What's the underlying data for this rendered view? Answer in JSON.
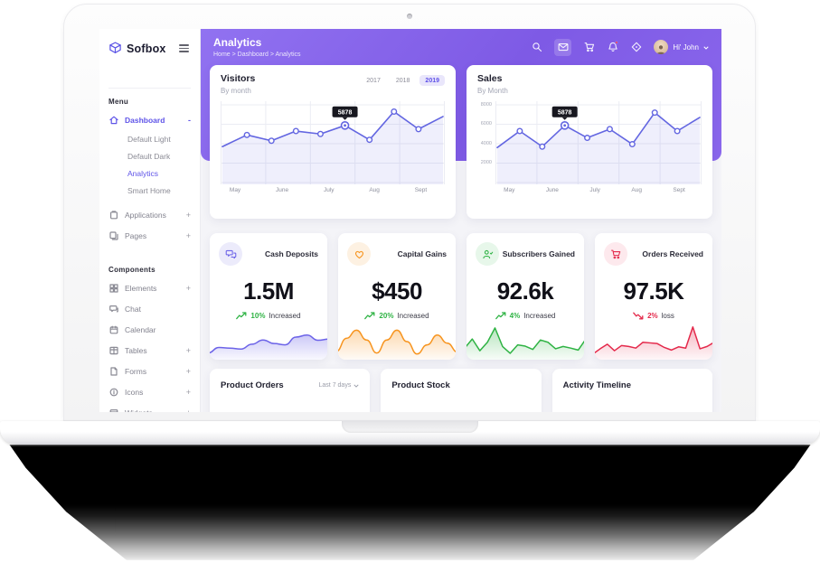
{
  "sidebar": {
    "logo": "Sofbox",
    "menu_label": "Menu",
    "items": [
      {
        "label": "Dashboard",
        "expand": "-"
      },
      {
        "label": "Default Light"
      },
      {
        "label": "Default Dark"
      },
      {
        "label": "Analytics"
      },
      {
        "label": "Smart Home"
      },
      {
        "label": "Applications",
        "expand": "+"
      },
      {
        "label": "Pages",
        "expand": "+"
      }
    ],
    "components_label": "Components",
    "component_items": [
      {
        "label": "Elements",
        "expand": "+"
      },
      {
        "label": "Chat",
        "expand": ""
      },
      {
        "label": "Calendar",
        "expand": ""
      },
      {
        "label": "Tables",
        "expand": "+"
      },
      {
        "label": "Forms",
        "expand": "+"
      },
      {
        "label": "Icons",
        "expand": "+"
      },
      {
        "label": "Widgets",
        "expand": "+"
      }
    ]
  },
  "header": {
    "title": "Analytics",
    "breadcrumb": "Home > Dashboard > Analytics",
    "user_greeting": "Hi' John",
    "icons": [
      "search-icon",
      "mail-icon",
      "cart-icon",
      "bell-icon",
      "gps-icon"
    ]
  },
  "stats": {
    "cards": [
      {
        "title": "Cash Deposits",
        "value": "1.5M",
        "trend_pct": "10%",
        "trend_label": "Increased",
        "direction": "up",
        "icon": "chat-bubbles-icon",
        "color": "#6c63e8",
        "tint": "#ecebfb",
        "trend_color": "#2fb344"
      },
      {
        "title": "Capital Gains",
        "value": "$450",
        "trend_pct": "20%",
        "trend_label": "Increased",
        "direction": "up",
        "icon": "heart-icon",
        "color": "#f7941e",
        "tint": "#fdf1e2",
        "trend_color": "#2fb344"
      },
      {
        "title": "Subscribers Gained",
        "value": "92.6k",
        "trend_pct": "4%",
        "trend_label": "Increased",
        "direction": "up",
        "icon": "user-icon",
        "color": "#2fb344",
        "tint": "#e7f7ea",
        "trend_color": "#2fb344"
      },
      {
        "title": "Orders Received",
        "value": "97.5K",
        "trend_pct": "2%",
        "trend_label": "loss",
        "direction": "down",
        "icon": "cart-icon",
        "color": "#e4294b",
        "tint": "#fde9ed",
        "trend_color": "#e4294b"
      }
    ]
  },
  "bottom_cards": [
    {
      "title": "Product Orders",
      "filter": "Last 7 days"
    },
    {
      "title": "Product Stock",
      "filter": ""
    },
    {
      "title": "Activity Timeline",
      "filter": ""
    }
  ],
  "chart_data": [
    {
      "type": "line",
      "title": "Visitors",
      "subtitle": "By month",
      "tabs": [
        "2017",
        "2018",
        "2019"
      ],
      "active_tab": "2019",
      "x_labels": [
        "May",
        "June",
        "July",
        "Aug",
        "Sept"
      ],
      "values": [
        3700,
        4900,
        4300,
        5300,
        5000,
        5878,
        4400,
        7300,
        5500,
        6800
      ],
      "ylim": [
        0,
        8000
      ],
      "grid": {
        "cols": 5,
        "rows": 4
      },
      "tooltip": {
        "index": 5,
        "value": "5878"
      },
      "color": "#6366e1",
      "fill": "rgba(99,102,225,0.10)"
    },
    {
      "type": "line",
      "title": "Sales",
      "subtitle": "By Month",
      "x_labels": [
        "May",
        "June",
        "July",
        "Aug",
        "Sept"
      ],
      "yticks": [
        "8000",
        "6000",
        "4000",
        "2000"
      ],
      "values": [
        3600,
        5300,
        3700,
        5878,
        4600,
        5500,
        3950,
        7200,
        5300,
        6700
      ],
      "ylim": [
        0,
        8000
      ],
      "grid": {
        "cols": 5,
        "rows": 4
      },
      "tooltip": {
        "index": 3,
        "value": "5878"
      },
      "color": "#6366e1",
      "fill": "rgba(99,102,225,0.10)"
    },
    {
      "type": "area",
      "smooth": true,
      "color": "#6c63e8",
      "values": [
        15,
        32,
        30,
        27,
        42,
        55,
        44,
        40,
        64,
        70,
        54,
        58
      ]
    },
    {
      "type": "area",
      "smooth": true,
      "color": "#f7941e",
      "values": [
        20,
        60,
        85,
        55,
        15,
        55,
        85,
        50,
        12,
        40,
        70,
        45,
        18
      ]
    },
    {
      "type": "area",
      "smooth": false,
      "color": "#2fb344",
      "values": [
        30,
        58,
        22,
        48,
        92,
        35,
        14,
        40,
        36,
        26,
        55,
        48,
        28,
        35,
        30,
        24,
        58
      ]
    },
    {
      "type": "area",
      "smooth": false,
      "color": "#e4294b",
      "values": [
        12,
        28,
        42,
        22,
        38,
        35,
        30,
        48,
        46,
        44,
        32,
        24,
        34,
        30,
        95,
        28,
        35,
        48
      ]
    }
  ]
}
